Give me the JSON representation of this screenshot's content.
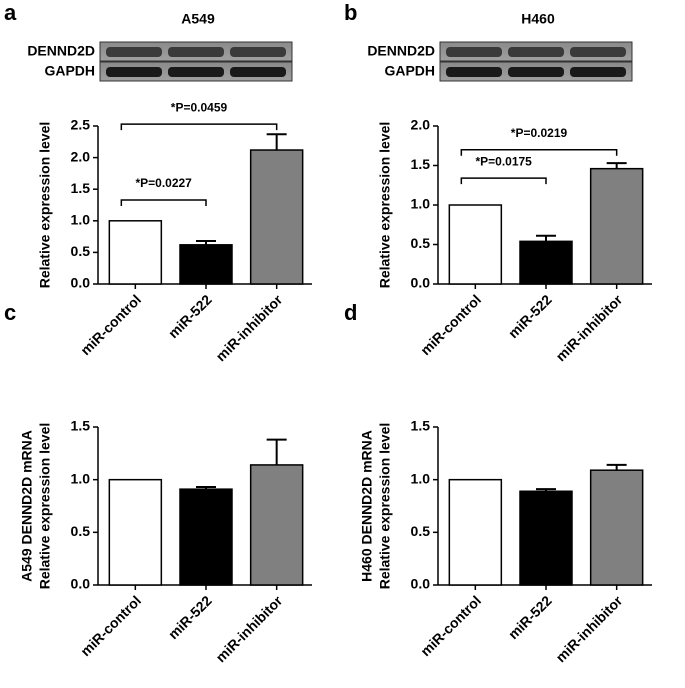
{
  "panel_labels": [
    "a",
    "b",
    "c",
    "d"
  ],
  "blots": [
    {
      "title": "A549",
      "rows": [
        "DENND2D",
        "GAPDH"
      ]
    },
    {
      "title": "H460",
      "rows": [
        "DENND2D",
        "GAPDH"
      ]
    }
  ],
  "chart_data": [
    {
      "type": "bar",
      "ylabel": [
        "Relative expression level"
      ],
      "categories": [
        "miR-control",
        "miR-522",
        "miR-inhibitor"
      ],
      "values": [
        1.0,
        0.62,
        2.12
      ],
      "errors": [
        null,
        0.06,
        0.25
      ],
      "colors": [
        "#ffffff",
        "#000000",
        "#808080"
      ],
      "ylim": [
        0,
        2.5
      ],
      "yticks": [
        {
          "value": 0,
          "label": "0.0"
        },
        0.5,
        {
          "value": 1,
          "label": "1.0"
        },
        1.5,
        {
          "value": 2,
          "label": "2.0"
        },
        2.5
      ],
      "annotations": [
        {
          "label": "*P=0.0227",
          "between": [
            "miR-control",
            "miR-522"
          ],
          "y": 1.33
        },
        {
          "label": "*P=0.0459",
          "between": [
            "miR-control",
            "miR-inhibitor"
          ],
          "y": 2.53
        }
      ]
    },
    {
      "type": "bar",
      "ylabel": [
        "Relative expression level"
      ],
      "categories": [
        "miR-control",
        "miR-522",
        "miR-inhibitor"
      ],
      "values": [
        1.0,
        0.54,
        1.46
      ],
      "errors": [
        null,
        0.07,
        0.07
      ],
      "colors": [
        "#ffffff",
        "#000000",
        "#808080"
      ],
      "ylim": [
        0,
        2.0
      ],
      "yticks": [
        {
          "value": 0,
          "label": "0.0"
        },
        0.5,
        {
          "value": 1,
          "label": "1.0"
        },
        1.5,
        {
          "value": 2,
          "label": "2.0"
        }
      ],
      "annotations": [
        {
          "label": "*P=0.0175",
          "between": [
            "miR-control",
            "miR-522"
          ],
          "y": 1.34
        },
        {
          "label": "*P=0.0219",
          "between": [
            "miR-control",
            "miR-inhibitor"
          ],
          "y": 1.7
        }
      ]
    },
    {
      "type": "bar",
      "ylabel": [
        "A549 DENND2D mRNA",
        "Relative expression level"
      ],
      "categories": [
        "miR-control",
        "miR-522",
        "miR-inhibitor"
      ],
      "values": [
        1.0,
        0.91,
        1.14
      ],
      "errors": [
        null,
        0.02,
        0.24
      ],
      "colors": [
        "#ffffff",
        "#000000",
        "#808080"
      ],
      "ylim": [
        0,
        1.5
      ],
      "yticks": [
        {
          "value": 0,
          "label": "0.0"
        },
        0.5,
        {
          "value": 1,
          "label": "1.0"
        },
        1.5
      ],
      "annotations": []
    },
    {
      "type": "bar",
      "ylabel": [
        "H460 DENND2D mRNA",
        "Relative expression level"
      ],
      "categories": [
        "miR-control",
        "miR-522",
        "miR-inhibitor"
      ],
      "values": [
        1.0,
        0.89,
        1.09
      ],
      "errors": [
        null,
        0.02,
        0.05
      ],
      "colors": [
        "#ffffff",
        "#000000",
        "#808080"
      ],
      "ylim": [
        0,
        1.5
      ],
      "yticks": [
        {
          "value": 0,
          "label": "0.0"
        },
        0.5,
        {
          "value": 1,
          "label": "1.0"
        },
        1.5
      ],
      "annotations": []
    }
  ]
}
